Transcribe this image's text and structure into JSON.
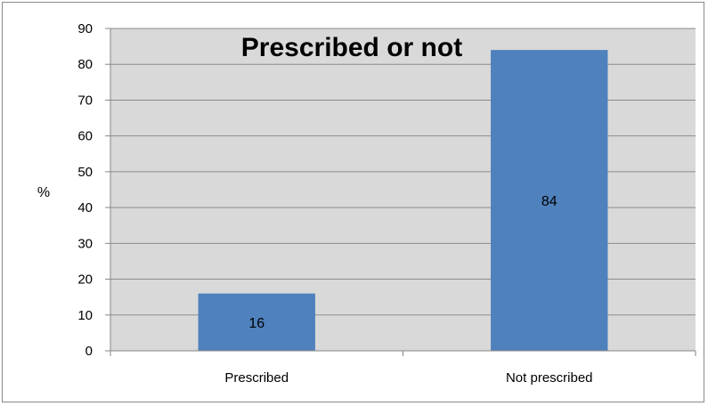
{
  "chart_data": {
    "type": "bar",
    "title": "Prescribed or not",
    "xlabel": "",
    "ylabel": "%",
    "categories": [
      "Prescribed",
      "Not prescribed"
    ],
    "values": [
      16,
      84
    ],
    "data_labels": [
      "16",
      "84"
    ],
    "ylim": [
      0,
      90
    ],
    "yticks": [
      0,
      10,
      20,
      30,
      40,
      50,
      60,
      70,
      80,
      90
    ],
    "grid": true,
    "legend": "none",
    "colors": {
      "bar": "#4f81bd",
      "plot_background": "#d9d9d9",
      "gridline": "#8c8c8c"
    }
  }
}
